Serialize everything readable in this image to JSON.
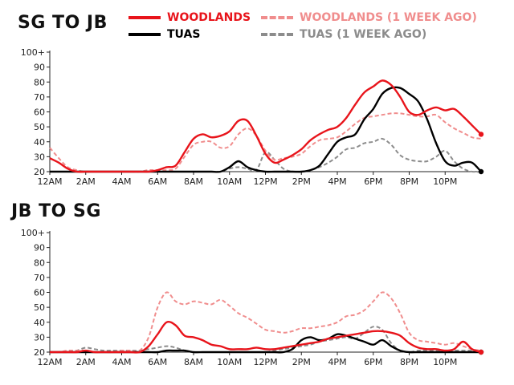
{
  "legend": [
    {
      "label": "WOODLANDS",
      "color": "#e8141b",
      "dash": false
    },
    {
      "label": "WOODLANDS (1 WEEK AGO)",
      "color": "#f08d8d",
      "dash": true
    },
    {
      "label": "TUAS",
      "color": "#000000",
      "dash": false
    },
    {
      "label": "TUAS (1 WEEK AGO)",
      "color": "#8c8c8c",
      "dash": true
    }
  ],
  "chart_data": [
    {
      "type": "line",
      "title": "SG TO JB",
      "xticks": [
        "12AM",
        "2AM",
        "4AM",
        "6AM",
        "8AM",
        "10AM",
        "12PM",
        "2PM",
        "4PM",
        "6PM",
        "8PM",
        "10PM"
      ],
      "yticks": [
        "20",
        "30",
        "40",
        "50",
        "60",
        "70",
        "80",
        "90",
        "100+"
      ],
      "xlim": [
        0,
        24
      ],
      "ylim": [
        20,
        100
      ],
      "grid": false,
      "legend_position": "top",
      "x": [
        0,
        0.5,
        1,
        1.5,
        2,
        2.5,
        3,
        3.5,
        4,
        4.5,
        5,
        5.5,
        6,
        6.5,
        7,
        7.5,
        8,
        8.5,
        9,
        9.5,
        10,
        10.5,
        11,
        11.5,
        12,
        12.5,
        13,
        13.5,
        14,
        14.5,
        15,
        15.5,
        16,
        16.5,
        17,
        17.5,
        18,
        18.5,
        19,
        19.5,
        20,
        20.5,
        21,
        21.5,
        22,
        22.5,
        23,
        23.5,
        24
      ],
      "series": [
        {
          "name": "WOODLANDS",
          "values": [
            29,
            26,
            22,
            20,
            20,
            20,
            20,
            20,
            20,
            20,
            20,
            20,
            21,
            23,
            24,
            33,
            42,
            45,
            43,
            44,
            47,
            54,
            54,
            44,
            32,
            26,
            28,
            31,
            35,
            41,
            45,
            48,
            50,
            56,
            65,
            73,
            77,
            81,
            78,
            70,
            60,
            58,
            61,
            63,
            61,
            62,
            57,
            51,
            45
          ]
        },
        {
          "name": "WOODLANDS (1 WEEK AGO)",
          "values": [
            36,
            29,
            23,
            21,
            20,
            20,
            20,
            20,
            20,
            20,
            20,
            21,
            21,
            21,
            22,
            30,
            38,
            40,
            40,
            36,
            37,
            45,
            49,
            44,
            34,
            28,
            29,
            30,
            32,
            37,
            41,
            42,
            43,
            47,
            52,
            56,
            57,
            58,
            59,
            59,
            58,
            57,
            57,
            58,
            53,
            49,
            46,
            43,
            42
          ]
        },
        {
          "name": "TUAS",
          "values": [
            20,
            20,
            20,
            20,
            20,
            20,
            20,
            20,
            20,
            20,
            20,
            20,
            20,
            20,
            20,
            20,
            20,
            20,
            20,
            20,
            23,
            27,
            23,
            21,
            20,
            20,
            20,
            20,
            20,
            21,
            24,
            32,
            40,
            43,
            45,
            55,
            62,
            72,
            76,
            76,
            72,
            67,
            55,
            39,
            27,
            24,
            26,
            26,
            20
          ]
        },
        {
          "name": "TUAS (1 WEEK AGO)",
          "values": [
            20,
            20,
            20,
            20,
            20,
            20,
            20,
            20,
            20,
            20,
            20,
            20,
            20,
            20,
            20,
            20,
            20,
            20,
            20,
            20,
            22,
            23,
            22,
            21,
            33,
            28,
            22,
            20,
            20,
            21,
            23,
            26,
            30,
            35,
            36,
            39,
            40,
            42,
            38,
            31,
            28,
            27,
            27,
            30,
            34,
            27,
            22,
            20,
            20
          ]
        }
      ]
    },
    {
      "type": "line",
      "title": "JB TO SG",
      "xticks": [
        "12AM",
        "2AM",
        "4AM",
        "6AM",
        "8AM",
        "10AM",
        "12PM",
        "2PM",
        "4PM",
        "6PM",
        "8PM",
        "10PM"
      ],
      "yticks": [
        "20",
        "30",
        "40",
        "50",
        "60",
        "70",
        "80",
        "90",
        "100+"
      ],
      "xlim": [
        0,
        24
      ],
      "ylim": [
        20,
        100
      ],
      "grid": false,
      "legend_position": "top",
      "x": [
        0,
        0.5,
        1,
        1.5,
        2,
        2.5,
        3,
        3.5,
        4,
        4.5,
        5,
        5.5,
        6,
        6.5,
        7,
        7.5,
        8,
        8.5,
        9,
        9.5,
        10,
        10.5,
        11,
        11.5,
        12,
        12.5,
        13,
        13.5,
        14,
        14.5,
        15,
        15.5,
        16,
        16.5,
        17,
        17.5,
        18,
        18.5,
        19,
        19.5,
        20,
        20.5,
        21,
        21.5,
        22,
        22.5,
        23,
        23.5,
        24
      ],
      "series": [
        {
          "name": "WOODLANDS",
          "values": [
            20,
            20,
            20,
            20,
            21,
            20,
            20,
            20,
            20,
            20,
            20,
            24,
            32,
            40,
            38,
            31,
            30,
            28,
            25,
            24,
            22,
            22,
            22,
            23,
            22,
            22,
            23,
            24,
            25,
            26,
            27,
            29,
            30,
            31,
            32,
            33,
            34,
            34,
            33,
            31,
            26,
            23,
            22,
            22,
            21,
            22,
            27,
            22,
            20
          ]
        },
        {
          "name": "WOODLANDS (1 WEEK AGO)",
          "values": [
            20,
            20,
            21,
            21,
            21,
            20,
            20,
            20,
            21,
            21,
            21,
            30,
            50,
            60,
            54,
            52,
            54,
            53,
            52,
            55,
            51,
            46,
            43,
            39,
            35,
            34,
            33,
            34,
            36,
            36,
            37,
            38,
            40,
            44,
            45,
            48,
            54,
            60,
            56,
            46,
            33,
            28,
            27,
            26,
            25,
            26,
            24,
            22,
            21
          ]
        },
        {
          "name": "TUAS",
          "values": [
            20,
            20,
            20,
            20,
            20,
            20,
            20,
            20,
            20,
            20,
            20,
            20,
            20,
            21,
            21,
            21,
            20,
            20,
            20,
            20,
            20,
            20,
            20,
            20,
            20,
            20,
            20,
            22,
            28,
            30,
            28,
            29,
            32,
            31,
            29,
            27,
            25,
            28,
            24,
            21,
            20,
            20,
            20,
            20,
            20,
            20,
            20,
            20,
            20
          ]
        },
        {
          "name": "TUAS (1 WEEK AGO)",
          "values": [
            20,
            20,
            20,
            21,
            23,
            22,
            21,
            21,
            21,
            21,
            21,
            22,
            23,
            24,
            23,
            21,
            20,
            20,
            20,
            20,
            20,
            20,
            20,
            20,
            20,
            21,
            22,
            23,
            24,
            25,
            27,
            28,
            29,
            30,
            29,
            33,
            37,
            35,
            26,
            21,
            20,
            21,
            21,
            21,
            20,
            21,
            21,
            21,
            21
          ]
        }
      ]
    }
  ]
}
